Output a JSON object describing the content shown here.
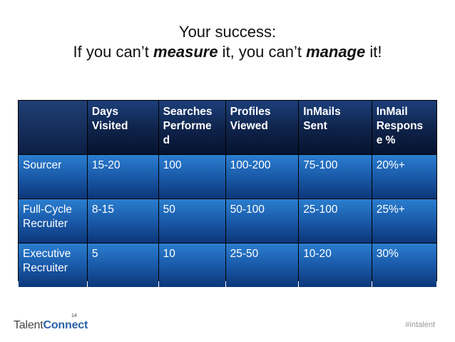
{
  "title": {
    "line1": "Your success:",
    "line2_part1": "If you can’t ",
    "line2_em1": "measure",
    "line2_part2": " it, you can’t ",
    "line2_em2": "manage",
    "line2_part3": " it!"
  },
  "table": {
    "headers": [
      "",
      "Days Visited",
      "Searches Performe d",
      "Profiles Viewed",
      "InMails Sent",
      "InMail Respons e %"
    ],
    "rows": [
      [
        "Sourcer",
        "15-20",
        "100",
        "100-200",
        "75-100",
        "20%+"
      ],
      [
        "Full-Cycle Recruiter",
        "8-15",
        "50",
        "50-100",
        "25-100",
        "25%+"
      ],
      [
        "Executive Recruiter",
        "5",
        "10",
        "25-50",
        "10-20",
        "30%"
      ]
    ]
  },
  "footer": {
    "logo_talent": "Talent",
    "logo_connect": "Connect",
    "logo_year": "14",
    "hashtag": "#intalent"
  },
  "colors": {
    "header_dark": "#0e2248",
    "cell_blue_top": "#2b7ed0",
    "cell_blue_bottom": "#0c3779",
    "brand_blue": "#2a62a8"
  }
}
